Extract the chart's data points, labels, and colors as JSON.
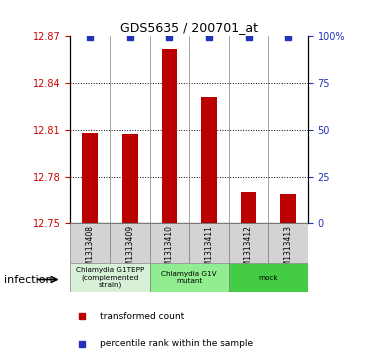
{
  "title": "GDS5635 / 200701_at",
  "samples": [
    "GSM1313408",
    "GSM1313409",
    "GSM1313410",
    "GSM1313411",
    "GSM1313412",
    "GSM1313413"
  ],
  "red_values": [
    12.808,
    12.807,
    12.862,
    12.831,
    12.77,
    12.769
  ],
  "ylim_left": [
    12.75,
    12.87
  ],
  "ylim_right": [
    0,
    100
  ],
  "yticks_left": [
    12.75,
    12.78,
    12.81,
    12.84,
    12.87
  ],
  "yticks_right": [
    0,
    25,
    50,
    75,
    100
  ],
  "bar_color": "#bb0000",
  "dot_color": "#2233bb",
  "groups": [
    {
      "label": "Chlamydia G1TEPP\n(complemented\nstrain)",
      "indices": [
        0,
        1
      ],
      "color": "#d8f0d8"
    },
    {
      "label": "Chlamydia G1V\nmutant",
      "indices": [
        2,
        3
      ],
      "color": "#90ee90"
    },
    {
      "label": "mock",
      "indices": [
        4,
        5
      ],
      "color": "#44cc44"
    }
  ],
  "factor_label": "infection",
  "legend_items": [
    {
      "label": "transformed count",
      "color": "#bb0000"
    },
    {
      "label": "percentile rank within the sample",
      "color": "#2233bb"
    }
  ],
  "bar_width": 0.4,
  "grid_yticks": [
    12.78,
    12.81,
    12.84
  ]
}
